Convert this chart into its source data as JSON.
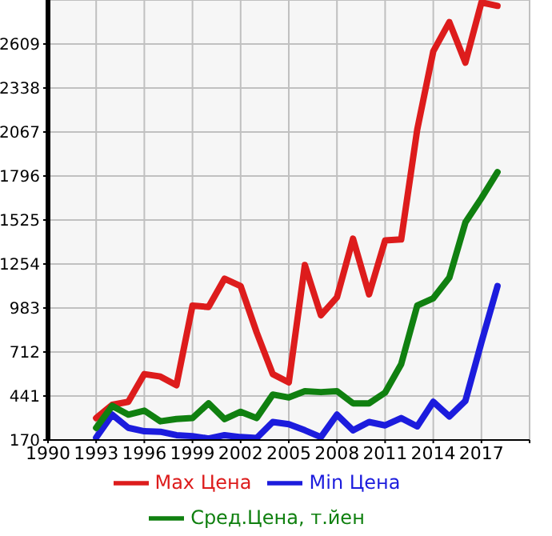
{
  "chart_data": {
    "type": "line",
    "x": [
      1993,
      1994,
      1995,
      1996,
      1997,
      1998,
      1999,
      2000,
      2001,
      2002,
      2003,
      2004,
      2005,
      2006,
      2007,
      2008,
      2009,
      2010,
      2011,
      2012,
      2013,
      2014,
      2015,
      2016,
      2017,
      2018
    ],
    "series": [
      {
        "name": "Max Цена",
        "color": "#dd1c1c",
        "values": [
          305,
          387,
          405,
          576,
          561,
          507,
          998,
          989,
          1164,
          1118,
          832,
          576,
          525,
          1248,
          938,
          1049,
          1410,
          1067,
          1399,
          1405,
          2082,
          2564,
          2744,
          2494,
          2865,
          2844
        ]
      },
      {
        "name": "Min Цена",
        "color": "#1c1cdd",
        "values": [
          185,
          326,
          245,
          224,
          221,
          200,
          194,
          179,
          200,
          188,
          182,
          281,
          267,
          230,
          188,
          326,
          230,
          281,
          260,
          305,
          254,
          405,
          315,
          411,
          772,
          1118
        ]
      },
      {
        "name": "Сред.Цена, т.йен",
        "color": "#108010",
        "values": [
          245,
          380,
          326,
          351,
          285,
          299,
          305,
          396,
          299,
          344,
          305,
          450,
          432,
          471,
          465,
          471,
          396,
          396,
          462,
          637,
          998,
          1043,
          1170,
          1510,
          1660,
          1820
        ]
      }
    ],
    "xlim": [
      1990,
      2020
    ],
    "xticks": [
      1990,
      1993,
      1996,
      1999,
      2002,
      2005,
      2008,
      2011,
      2014,
      2017,
      {
        "value": 2020,
        "label": null
      }
    ],
    "ylim": [
      170,
      2880
    ],
    "yticks": [
      170,
      441,
      712,
      983,
      1254,
      1525,
      1796,
      2067,
      2338,
      2609
    ],
    "grid": true,
    "legend": "bottom",
    "marker": "none",
    "line_style": "solid"
  }
}
